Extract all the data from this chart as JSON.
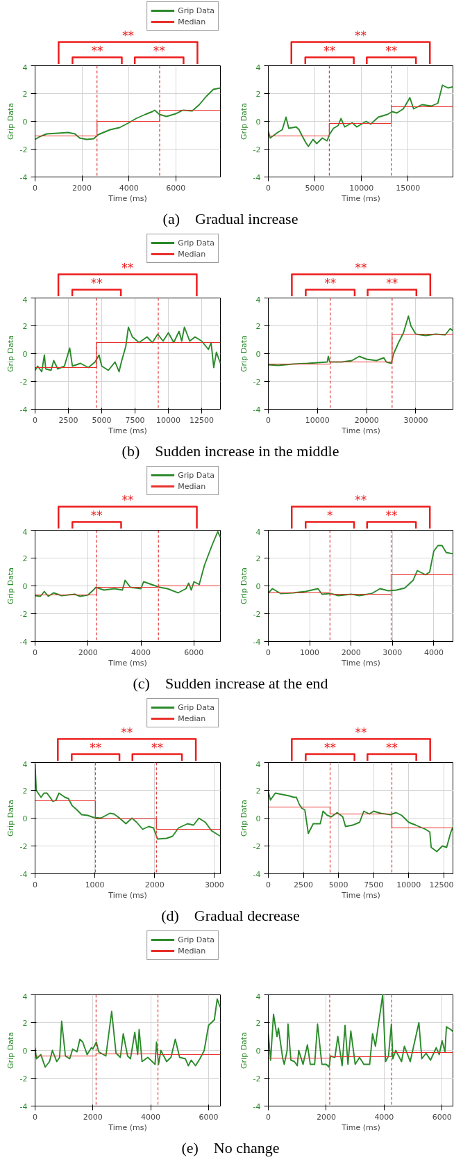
{
  "chart_data": [
    {
      "type": "line",
      "title": "(a)    Gradual increase",
      "xlabel": "Time (ms)",
      "ylabel": "Grip Data",
      "xlim": [
        0,
        7900
      ],
      "ylim": [
        -4,
        4
      ],
      "xticks": [
        0,
        2000,
        4000,
        6000
      ],
      "yticks": [
        -4,
        -2,
        0,
        2,
        4
      ],
      "grid": true,
      "legend": "top right",
      "series": [
        {
          "name": "Grip Data",
          "color": "#2a8a2a",
          "x": [
            0,
            200,
            500,
            1000,
            1400,
            1700,
            1900,
            2200,
            2500,
            2700,
            3200,
            3600,
            4000,
            4300,
            4700,
            5000,
            5100,
            5300,
            5600,
            6000,
            6300,
            6700,
            7000,
            7300,
            7600,
            7900
          ],
          "values": [
            -1.3,
            -1.1,
            -0.9,
            -0.85,
            -0.8,
            -0.9,
            -1.2,
            -1.3,
            -1.25,
            -0.95,
            -0.6,
            -0.45,
            -0.1,
            0.2,
            0.5,
            0.7,
            0.8,
            0.5,
            0.35,
            0.55,
            0.8,
            0.75,
            1.2,
            1.8,
            2.3,
            2.4
          ]
        },
        {
          "name": "Median",
          "color": "#e8302a",
          "x": [
            0,
            2640,
            2640,
            5310,
            5310,
            7900
          ],
          "values": [
            -1.05,
            -1.05,
            0,
            0,
            0.8,
            0.8
          ]
        }
      ],
      "ref_lines": [
        {
          "axis": "x",
          "value": 2640,
          "color": "#e03a3a",
          "line_style": "dashed"
        },
        {
          "axis": "x",
          "value": 5310,
          "color": "#e03a3a",
          "line_style": "dashed"
        }
      ],
      "annotations": [
        "**",
        "**",
        "**"
      ]
    },
    {
      "type": "line",
      "xlabel": "Time (ms)",
      "ylabel": "Grip Data",
      "xlim": [
        0,
        19900
      ],
      "ylim": [
        -4,
        4
      ],
      "xticks": [
        0,
        5000,
        10000,
        15000
      ],
      "yticks": [
        -4,
        -2,
        0,
        2,
        4
      ],
      "grid": true,
      "series": [
        {
          "color": "#2a8a2a",
          "x": [
            0,
            200,
            1000,
            1500,
            1900,
            2200,
            3000,
            3300,
            3600,
            4000,
            4300,
            4800,
            5200,
            5800,
            6300,
            6600,
            7000,
            7500,
            7800,
            8200,
            9000,
            9500,
            10500,
            11000,
            11800,
            12800,
            13300,
            13800,
            14500,
            15200,
            15600,
            16500,
            17500,
            18200,
            18700,
            19300,
            19900
          ],
          "values": [
            -0.7,
            -1.2,
            -0.8,
            -0.6,
            0.3,
            -0.5,
            -0.4,
            -0.6,
            -1.0,
            -1.5,
            -1.8,
            -1.3,
            -1.6,
            -1.2,
            -1.4,
            -0.9,
            -0.5,
            -0.3,
            0.2,
            -0.4,
            -0.1,
            -0.4,
            0,
            -0.2,
            0.3,
            0.5,
            0.7,
            0.6,
            0.9,
            1.7,
            0.9,
            1.2,
            1.1,
            1.3,
            2.6,
            2.4,
            2.5
          ]
        },
        {
          "color": "#e8302a",
          "x": [
            0,
            6550,
            6550,
            13200,
            13200,
            19900
          ],
          "values": [
            -1.05,
            -1.05,
            -0.15,
            -0.15,
            1.05,
            1.05
          ]
        }
      ],
      "ref_lines": [
        {
          "axis": "x",
          "value": 6550,
          "color": "#e03a3a",
          "line_style": "dashed"
        },
        {
          "axis": "x",
          "value": 13200,
          "color": "#e03a3a",
          "line_style": "dashed"
        }
      ],
      "annotations": [
        "**",
        "**",
        "**"
      ]
    },
    {
      "type": "line",
      "title": "(b)    Sudden increase in the middle",
      "xlabel": "Time (ms)",
      "ylabel": "Grip Data",
      "xlim": [
        0,
        13900
      ],
      "ylim": [
        -4,
        4
      ],
      "xticks": [
        0,
        2500,
        5000,
        7500,
        10000,
        12500
      ],
      "yticks": [
        -4,
        -2,
        0,
        2,
        4
      ],
      "grid": true,
      "legend": "top right",
      "series": [
        {
          "name": "Grip Data",
          "color": "#2a8a2a",
          "x": [
            0,
            200,
            500,
            700,
            800,
            1200,
            1400,
            1700,
            2200,
            2600,
            2800,
            3400,
            4000,
            4500,
            4800,
            5000,
            5500,
            6000,
            6300,
            6500,
            6800,
            7000,
            7300,
            7800,
            8400,
            8800,
            9200,
            9600,
            10000,
            10400,
            10800,
            11000,
            11200,
            11600,
            12000,
            12500,
            13000,
            13200,
            13400,
            13600,
            13900
          ],
          "values": [
            -1.2,
            -0.9,
            -1.3,
            -0.1,
            -1.1,
            -1.2,
            -0.5,
            -1.1,
            -0.9,
            0.4,
            -0.9,
            -0.7,
            -1.0,
            -0.6,
            -0.1,
            -0.9,
            -1.2,
            -0.6,
            -1.3,
            -0.5,
            0.5,
            1.9,
            1.2,
            0.8,
            1.2,
            0.8,
            1.4,
            0.9,
            1.5,
            0.8,
            1.6,
            0.9,
            1.9,
            0.9,
            1.2,
            0.9,
            0.3,
            0.8,
            -1.0,
            0.1,
            -0.7
          ]
        },
        {
          "name": "Median",
          "color": "#e8302a",
          "x": [
            0,
            4610,
            4610,
            9240,
            9240,
            13900
          ],
          "values": [
            -1.0,
            -1.0,
            0.8,
            0.8,
            0.8,
            0.8
          ]
        }
      ],
      "ref_lines": [
        {
          "axis": "x",
          "value": 4610,
          "color": "#e03a3a",
          "line_style": "dashed"
        },
        {
          "axis": "x",
          "value": 9240,
          "color": "#e03a3a",
          "line_style": "dashed"
        }
      ],
      "annotations": [
        "**",
        "**"
      ]
    },
    {
      "type": "line",
      "xlabel": "Time (ms)",
      "ylabel": "Grip Data",
      "xlim": [
        0,
        37700
      ],
      "ylim": [
        -4,
        4
      ],
      "xticks": [
        0,
        10000,
        20000,
        30000
      ],
      "yticks": [
        -4,
        -2,
        0,
        2,
        4
      ],
      "grid": true,
      "series": [
        {
          "color": "#2a8a2a",
          "x": [
            0,
            2000,
            5000,
            8000,
            12000,
            12200,
            12500,
            15000,
            17000,
            18500,
            20000,
            22000,
            23500,
            24000,
            25000,
            25500,
            26500,
            27500,
            28500,
            29000,
            30000,
            32000,
            34000,
            36000,
            37000,
            37700
          ],
          "values": [
            -0.8,
            -0.85,
            -0.75,
            -0.7,
            -0.6,
            -0.2,
            -0.6,
            -0.6,
            -0.5,
            -0.2,
            -0.4,
            -0.5,
            -0.3,
            -0.6,
            -0.7,
            0,
            0.8,
            1.5,
            2.7,
            2.0,
            1.4,
            1.3,
            1.4,
            1.35,
            1.8,
            1.6
          ]
        },
        {
          "color": "#e8302a",
          "x": [
            0,
            12590,
            12590,
            25180,
            25180,
            37700
          ],
          "values": [
            -0.75,
            -0.75,
            -0.6,
            -0.6,
            1.4,
            1.4
          ]
        }
      ],
      "ref_lines": [
        {
          "axis": "x",
          "value": 12590,
          "color": "#e03a3a",
          "line_style": "dashed"
        },
        {
          "axis": "x",
          "value": 25180,
          "color": "#e03a3a",
          "line_style": "dashed"
        }
      ],
      "annotations": [
        "**",
        "**",
        "**"
      ]
    },
    {
      "type": "line",
      "title": "(c)    Sudden increase at the end",
      "xlabel": "Time (ms)",
      "ylabel": "Grip Data",
      "xlim": [
        0,
        7000
      ],
      "ylim": [
        -4,
        4
      ],
      "xticks": [
        0,
        2000,
        4000,
        6000
      ],
      "yticks": [
        -4,
        -2,
        0,
        2,
        4
      ],
      "grid": true,
      "legend": "top right",
      "series": [
        {
          "name": "Grip Data",
          "color": "#2a8a2a",
          "x": [
            0,
            200,
            350,
            500,
            700,
            1000,
            1500,
            1700,
            2000,
            2200,
            2300,
            2600,
            3000,
            3300,
            3400,
            3600,
            4000,
            4100,
            4400,
            4700,
            5000,
            5400,
            5700,
            5800,
            5900,
            6000,
            6200,
            6400,
            6700,
            6900,
            7000
          ],
          "values": [
            -0.7,
            -0.75,
            -0.4,
            -0.75,
            -0.5,
            -0.7,
            -0.6,
            -0.75,
            -0.65,
            -0.3,
            -0.1,
            -0.3,
            -0.2,
            -0.3,
            0.4,
            -0.1,
            -0.2,
            0.3,
            0.1,
            -0.1,
            -0.2,
            -0.5,
            -0.2,
            0.2,
            -0.3,
            0.3,
            0.1,
            1.5,
            3.0,
            3.9,
            3.5
          ]
        },
        {
          "name": "Median",
          "color": "#e8302a",
          "x": [
            0,
            2330,
            2330,
            4660,
            4660,
            7000
          ],
          "values": [
            -0.65,
            -0.65,
            -0.1,
            -0.1,
            0,
            0
          ]
        }
      ],
      "ref_lines": [
        {
          "axis": "x",
          "value": 2330,
          "color": "#e03a3a",
          "line_style": "dashed"
        },
        {
          "axis": "x",
          "value": 4660,
          "color": "#e03a3a",
          "line_style": "dashed"
        }
      ],
      "annotations": [
        "**",
        "**"
      ]
    },
    {
      "type": "line",
      "xlabel": "Time (ms)",
      "ylabel": "Grip Data",
      "xlim": [
        0,
        4480
      ],
      "ylim": [
        -4,
        4
      ],
      "xticks": [
        0,
        1000,
        2000,
        3000,
        4000
      ],
      "yticks": [
        -4,
        -2,
        0,
        2,
        4
      ],
      "grid": true,
      "series": [
        {
          "color": "#2a8a2a",
          "x": [
            0,
            100,
            300,
            600,
            900,
            1200,
            1300,
            1500,
            1700,
            2000,
            2200,
            2500,
            2700,
            2900,
            3100,
            3300,
            3500,
            3600,
            3800,
            3900,
            4000,
            4100,
            4200,
            4300,
            4480
          ],
          "values": [
            -0.5,
            -0.2,
            -0.55,
            -0.5,
            -0.4,
            -0.2,
            -0.6,
            -0.55,
            -0.7,
            -0.6,
            -0.7,
            -0.55,
            -0.2,
            -0.35,
            -0.3,
            -0.15,
            0.4,
            1.1,
            0.8,
            1.0,
            2.5,
            2.9,
            2.9,
            2.4,
            2.3
          ]
        },
        {
          "color": "#e8302a",
          "x": [
            0,
            1490,
            1490,
            2970,
            2970,
            4480
          ],
          "values": [
            -0.5,
            -0.5,
            -0.6,
            -0.6,
            0.8,
            0.8
          ]
        }
      ],
      "ref_lines": [
        {
          "axis": "x",
          "value": 1490,
          "color": "#e03a3a",
          "line_style": "dashed"
        },
        {
          "axis": "x",
          "value": 2970,
          "color": "#e03a3a",
          "line_style": "dashed"
        }
      ],
      "annotations": [
        "**",
        "*",
        "**"
      ]
    },
    {
      "type": "line",
      "title": "(d)    Gradual decrease",
      "xlabel": "Time (ms)",
      "ylabel": "Grip Data",
      "xlim": [
        0,
        3100
      ],
      "ylim": [
        -4,
        4
      ],
      "xticks": [
        0,
        1000,
        2000,
        3000
      ],
      "yticks": [
        -4,
        -2,
        0,
        2,
        4
      ],
      "grid": true,
      "legend": "top right",
      "series": [
        {
          "name": "Grip Data",
          "color": "#2a8a2a",
          "x": [
            0,
            20,
            100,
            150,
            200,
            300,
            350,
            400,
            500,
            560,
            620,
            700,
            780,
            880,
            980,
            1100,
            1250,
            1320,
            1400,
            1520,
            1620,
            1700,
            1800,
            1900,
            1980,
            2050,
            2200,
            2300,
            2400,
            2550,
            2650,
            2740,
            2850,
            2950,
            3100
          ],
          "values": [
            3.9,
            2.0,
            1.5,
            1.8,
            1.8,
            1.2,
            1.3,
            1.8,
            1.5,
            1.4,
            0.9,
            0.6,
            0.25,
            0.2,
            0.05,
            0.0,
            0.35,
            0.3,
            0.05,
            -0.4,
            0.0,
            -0.3,
            -0.8,
            -0.6,
            -0.7,
            -1.5,
            -1.45,
            -1.3,
            -0.7,
            -0.4,
            -0.5,
            0.0,
            -0.3,
            -0.9,
            -1.3
          ]
        },
        {
          "name": "Median",
          "color": "#e8302a",
          "x": [
            0,
            1010,
            1010,
            2030,
            2030,
            3100
          ],
          "values": [
            1.25,
            1.25,
            -0.05,
            -0.05,
            -0.8,
            -0.8
          ]
        }
      ],
      "ref_lines": [
        {
          "axis": "x",
          "value": 1010,
          "color": "#e03a3a",
          "line_style": "dashed"
        },
        {
          "axis": "x",
          "value": 2030,
          "color": "#e03a3a",
          "line_style": "dashed"
        }
      ],
      "annotations": [
        "**",
        "**",
        "**"
      ]
    },
    {
      "type": "line",
      "xlabel": "Time (ms)",
      "ylabel": "Grip Data",
      "xlim": [
        0,
        13200
      ],
      "ylim": [
        -4,
        4
      ],
      "xticks": [
        0,
        2500,
        5000,
        7500,
        10000,
        12500
      ],
      "yticks": [
        -4,
        -2,
        0,
        2,
        4
      ],
      "grid": true,
      "series": [
        {
          "color": "#2a8a2a",
          "x": [
            0,
            150,
            500,
            1500,
            1800,
            2000,
            2200,
            2400,
            2600,
            2850,
            3200,
            3700,
            3900,
            4200,
            4500,
            4900,
            5300,
            5500,
            6000,
            6500,
            6800,
            7200,
            7500,
            8000,
            8700,
            9100,
            9500,
            10000,
            10500,
            11200,
            11500,
            11600,
            12000,
            12400,
            12700,
            13000,
            13200
          ],
          "values": [
            1.9,
            1.3,
            1.8,
            1.6,
            1.5,
            1.5,
            1.0,
            0.7,
            0.6,
            -1.1,
            -0.4,
            -0.4,
            0.5,
            0.2,
            0.1,
            0.4,
            0.1,
            -0.6,
            -0.5,
            -0.3,
            0.5,
            0.3,
            0.5,
            0.35,
            0.25,
            0.4,
            0.2,
            -0.3,
            -0.5,
            -0.8,
            -1.0,
            -2.1,
            -2.4,
            -2.0,
            -2.1,
            -1.0,
            -0.5
          ]
        },
        {
          "color": "#e8302a",
          "x": [
            0,
            4400,
            4400,
            8800,
            8800,
            13200
          ],
          "values": [
            0.8,
            0.8,
            0.3,
            0.3,
            -0.7,
            -0.7
          ]
        }
      ],
      "ref_lines": [
        {
          "axis": "x",
          "value": 4400,
          "color": "#e03a3a",
          "line_style": "dashed"
        },
        {
          "axis": "x",
          "value": 8800,
          "color": "#e03a3a",
          "line_style": "dashed"
        }
      ],
      "annotations": [
        "**",
        "**",
        "**"
      ]
    },
    {
      "type": "line",
      "title": "(e)    No change",
      "xlabel": "Time (ms)",
      "ylabel": "Grip Data",
      "xlim": [
        0,
        6410
      ],
      "ylim": [
        -4,
        4
      ],
      "xticks": [
        0,
        2000,
        4000,
        6000
      ],
      "yticks": [
        -4,
        -2,
        0,
        2,
        4
      ],
      "grid": true,
      "legend": "top right",
      "series": [
        {
          "name": "Grip Data",
          "color": "#2a8a2a",
          "x": [
            0,
            50,
            200,
            350,
            500,
            600,
            750,
            850,
            920,
            1050,
            1200,
            1300,
            1450,
            1550,
            1650,
            1800,
            1950,
            2000,
            2120,
            2200,
            2450,
            2650,
            2800,
            2950,
            3050,
            3200,
            3300,
            3450,
            3550,
            3600,
            3700,
            3900,
            4150,
            4200,
            4270,
            4350,
            4550,
            4700,
            4850,
            5000,
            5200,
            5300,
            5400,
            5550,
            5700,
            5850,
            6000,
            6200,
            6300,
            6400
          ],
          "values": [
            0.2,
            -0.6,
            -0.3,
            -1.2,
            -0.8,
            0,
            -0.8,
            -0.5,
            2.1,
            -0.4,
            -0.6,
            0.1,
            -0.1,
            0.8,
            0.6,
            -0.3,
            0.2,
            0.1,
            0.6,
            -0.1,
            -0.4,
            2.8,
            -0.2,
            -0.5,
            1.2,
            -0.4,
            -0.6,
            1.3,
            -0.3,
            1.5,
            -0.8,
            -0.5,
            -1.0,
            0.6,
            -1.0,
            0,
            -0.8,
            -0.5,
            0.8,
            -0.5,
            -0.6,
            -1.1,
            -0.7,
            -1.1,
            -0.6,
            0,
            1.8,
            2.2,
            3.7,
            3.1
          ]
        },
        {
          "name": "Median",
          "color": "#e8302a",
          "x": [
            0,
            2110,
            2110,
            4250,
            4250,
            6410
          ],
          "values": [
            -0.4,
            -0.4,
            -0.25,
            -0.25,
            -0.3,
            -0.3
          ]
        }
      ],
      "ref_lines": [
        {
          "axis": "x",
          "value": 2110,
          "color": "#e03a3a",
          "line_style": "dashed"
        },
        {
          "axis": "x",
          "value": 4250,
          "color": "#e03a3a",
          "line_style": "dashed"
        }
      ]
    },
    {
      "type": "line",
      "xlabel": "Time (ms)",
      "ylabel": "Grip Data",
      "xlim": [
        0,
        6400
      ],
      "ylim": [
        -4,
        4
      ],
      "xticks": [
        0,
        2000,
        4000,
        6000
      ],
      "yticks": [
        -4,
        -2,
        0,
        2,
        4
      ],
      "grid": true,
      "series": [
        {
          "color": "#2a8a2a",
          "x": [
            0,
            80,
            180,
            300,
            350,
            500,
            550,
            650,
            680,
            780,
            900,
            1000,
            1050,
            1200,
            1350,
            1450,
            1600,
            1700,
            1850,
            2000,
            2100,
            2150,
            2300,
            2400,
            2550,
            2650,
            2750,
            2850,
            3000,
            3150,
            3300,
            3500,
            3600,
            3700,
            3750,
            3950,
            4050,
            4150,
            4250,
            4300,
            4400,
            4600,
            4700,
            4900,
            5200,
            5300,
            5450,
            5600,
            5800,
            5900,
            6000,
            6100,
            6150,
            6300,
            6400
          ],
          "values": [
            1.2,
            -0.7,
            2.6,
            1.0,
            1.6,
            -0.6,
            -1.0,
            0.0,
            1.9,
            -0.7,
            -0.8,
            -1.1,
            0,
            -1.0,
            0.4,
            -1.0,
            -1.0,
            1.9,
            -1.0,
            -1.0,
            -1.2,
            -0.4,
            -0.5,
            1.0,
            -1.1,
            1.8,
            -1.0,
            1.4,
            -1.0,
            -0.5,
            -1.0,
            -1.0,
            1.2,
            0.3,
            1.1,
            4.0,
            -0.8,
            -0.4,
            1.9,
            -0.6,
            0,
            -0.8,
            0.3,
            -0.8,
            2.0,
            -0.6,
            -0.2,
            -0.7,
            0.2,
            -0.3,
            0.7,
            -0.1,
            1.7,
            1.5,
            1.3
          ]
        },
        {
          "color": "#e8302a",
          "x": [
            0,
            2120,
            2120,
            4260,
            4260,
            6400
          ],
          "values": [
            -0.55,
            -0.55,
            -0.45,
            -0.45,
            -0.15,
            -0.15
          ]
        }
      ],
      "ref_lines": [
        {
          "axis": "x",
          "value": 2120,
          "color": "#e03a3a",
          "line_style": "dashed"
        },
        {
          "axis": "x",
          "value": 4260,
          "color": "#e03a3a",
          "line_style": "dashed"
        }
      ]
    }
  ]
}
